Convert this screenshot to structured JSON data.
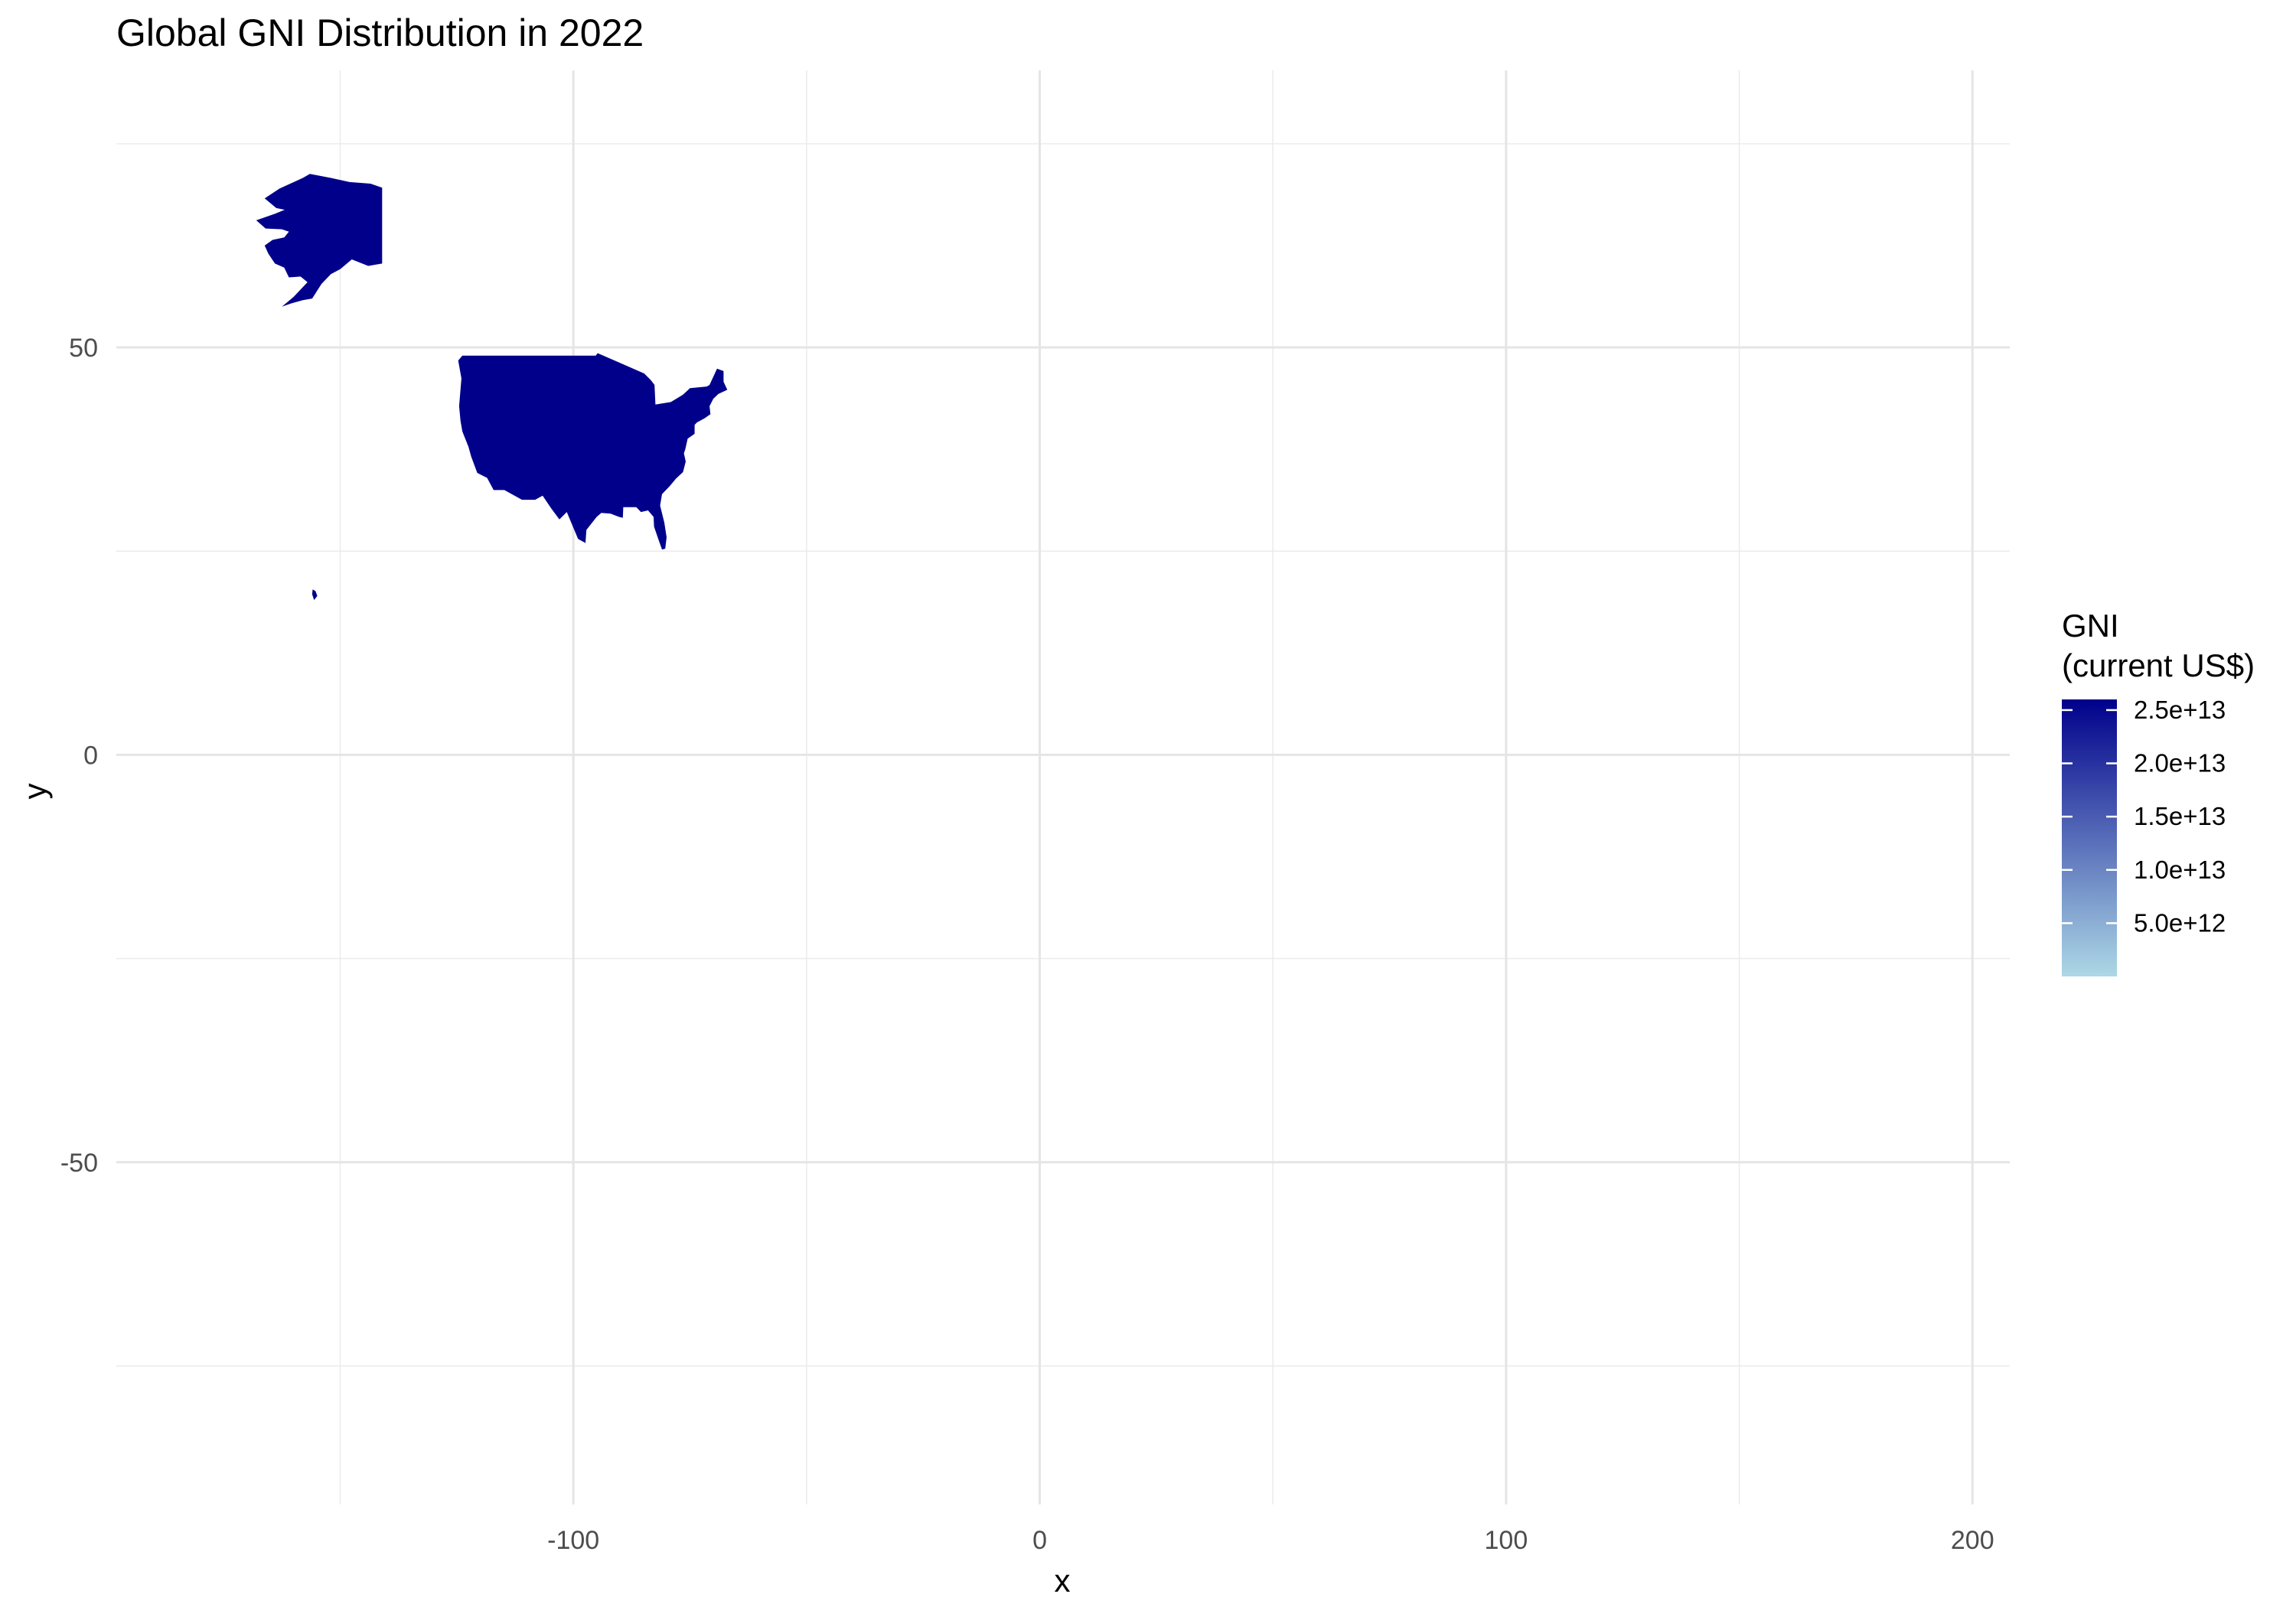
{
  "chart_data": {
    "type": "choropleth-map",
    "title": "Global GNI Distribution in 2022",
    "xlabel": "x",
    "ylabel": "y",
    "xlim": [
      -198,
      208
    ],
    "ylim": [
      -92,
      84
    ],
    "x_ticks": [
      -100,
      0,
      100,
      200
    ],
    "x_tick_labels": [
      "-100",
      "0",
      "100",
      "200"
    ],
    "x_minor": [
      -150,
      -50,
      50,
      150
    ],
    "y_ticks": [
      50,
      0,
      -50
    ],
    "y_tick_labels": [
      "50",
      "0",
      "-50"
    ],
    "y_minor": [
      75,
      25,
      -25,
      -75
    ],
    "grid": true,
    "legend": {
      "title_line1": "GNI",
      "title_line2": "(current US$)",
      "placement": "right",
      "min": 0,
      "max": 26000000000000,
      "low_color": "#add8e6",
      "high_color": "#00008b",
      "breaks": [
        25000000000000,
        20000000000000,
        15000000000000,
        10000000000000,
        5000000000000
      ],
      "labels": [
        "2.5e+13",
        "2.0e+13",
        "1.5e+13",
        "1.0e+13",
        "5.0e+12"
      ]
    },
    "regions": [
      {
        "name": "United States (contiguous)",
        "value": 25500000000000,
        "fill": "#00008b",
        "coords": [
          [
            -123.8,
            49
          ],
          [
            -95.2,
            49
          ],
          [
            -94.8,
            49.3
          ],
          [
            -89.6,
            48
          ],
          [
            -84.8,
            46.8
          ],
          [
            -83.4,
            46
          ],
          [
            -82.6,
            45.4
          ],
          [
            -82.4,
            43
          ],
          [
            -79.1,
            43.3
          ],
          [
            -76.5,
            44.2
          ],
          [
            -75,
            45
          ],
          [
            -71.4,
            45.2
          ],
          [
            -70.8,
            45.4
          ],
          [
            -69.2,
            47.4
          ],
          [
            -67.8,
            47.1
          ],
          [
            -67.8,
            45.8
          ],
          [
            -67,
            44.8
          ],
          [
            -68.9,
            44.3
          ],
          [
            -70,
            43.7
          ],
          [
            -70.8,
            42.8
          ],
          [
            -70.6,
            41.8
          ],
          [
            -71.9,
            41.3
          ],
          [
            -73.5,
            40.8
          ],
          [
            -74,
            40.5
          ],
          [
            -74,
            39.4
          ],
          [
            -75.5,
            38.8
          ],
          [
            -76,
            37.5
          ],
          [
            -76.3,
            37
          ],
          [
            -75.9,
            36
          ],
          [
            -76.5,
            34.7
          ],
          [
            -78,
            33.9
          ],
          [
            -79.3,
            33
          ],
          [
            -81,
            32
          ],
          [
            -81.4,
            30.6
          ],
          [
            -80.5,
            28.5
          ],
          [
            -80,
            26.7
          ],
          [
            -80.3,
            25.3
          ],
          [
            -81,
            25.2
          ],
          [
            -81.8,
            26.5
          ],
          [
            -82.7,
            28
          ],
          [
            -82.8,
            29.2
          ],
          [
            -84,
            30
          ],
          [
            -85.5,
            29.8
          ],
          [
            -86.5,
            30.4
          ],
          [
            -89.3,
            30.4
          ],
          [
            -89.4,
            29.1
          ],
          [
            -90.2,
            29.2
          ],
          [
            -92,
            29.6
          ],
          [
            -94,
            29.7
          ],
          [
            -95,
            29.2
          ],
          [
            -97.2,
            27.6
          ],
          [
            -97.4,
            26
          ],
          [
            -99,
            26.5
          ],
          [
            -101.4,
            29.8
          ],
          [
            -103,
            28.9
          ],
          [
            -104.7,
            30.2
          ],
          [
            -106.6,
            31.8
          ],
          [
            -108.2,
            31.3
          ],
          [
            -111,
            31.3
          ],
          [
            -114.8,
            32.5
          ],
          [
            -117.1,
            32.5
          ],
          [
            -118.5,
            34
          ],
          [
            -120.6,
            34.6
          ],
          [
            -121.9,
            36.6
          ],
          [
            -122.5,
            37.8
          ],
          [
            -123.8,
            39.7
          ],
          [
            -124.2,
            41
          ],
          [
            -124.5,
            42.8
          ],
          [
            -124,
            46.2
          ],
          [
            -124.7,
            48.4
          ],
          [
            -123.8,
            49
          ]
        ]
      },
      {
        "name": "United States (Alaska)",
        "value": 25500000000000,
        "fill": "#00008b",
        "coords": [
          [
            -141,
            69.6
          ],
          [
            -141,
            60.3
          ],
          [
            -144,
            60
          ],
          [
            -147.5,
            60.8
          ],
          [
            -150,
            59.6
          ],
          [
            -152,
            59
          ],
          [
            -154,
            57.8
          ],
          [
            -156,
            56
          ],
          [
            -158,
            55.8
          ],
          [
            -160.5,
            55.4
          ],
          [
            -162.5,
            55
          ],
          [
            -160,
            56.2
          ],
          [
            -157,
            58
          ],
          [
            -158.5,
            58.7
          ],
          [
            -161,
            58.6
          ],
          [
            -162,
            59.8
          ],
          [
            -164,
            60.3
          ],
          [
            -165.4,
            61.5
          ],
          [
            -166.2,
            62.5
          ],
          [
            -164.5,
            63.2
          ],
          [
            -162,
            63.5
          ],
          [
            -161,
            64.2
          ],
          [
            -162.5,
            64.5
          ],
          [
            -166,
            64.6
          ],
          [
            -168,
            65.6
          ],
          [
            -164,
            66.4
          ],
          [
            -161.9,
            66.9
          ],
          [
            -163.7,
            67.1
          ],
          [
            -166.2,
            68.3
          ],
          [
            -163,
            69.5
          ],
          [
            -158,
            70.8
          ],
          [
            -156.5,
            71.3
          ],
          [
            -152,
            70.8
          ],
          [
            -148,
            70.3
          ],
          [
            -143.5,
            70.1
          ],
          [
            -141,
            69.6
          ]
        ]
      },
      {
        "name": "United States (Hawaii)",
        "value": 25500000000000,
        "fill": "#00008b",
        "coords": [
          [
            -155.9,
            20.3
          ],
          [
            -155.3,
            20.1
          ],
          [
            -154.9,
            19.5
          ],
          [
            -155.6,
            19
          ],
          [
            -156,
            19.7
          ],
          [
            -155.9,
            20.3
          ]
        ]
      }
    ]
  }
}
